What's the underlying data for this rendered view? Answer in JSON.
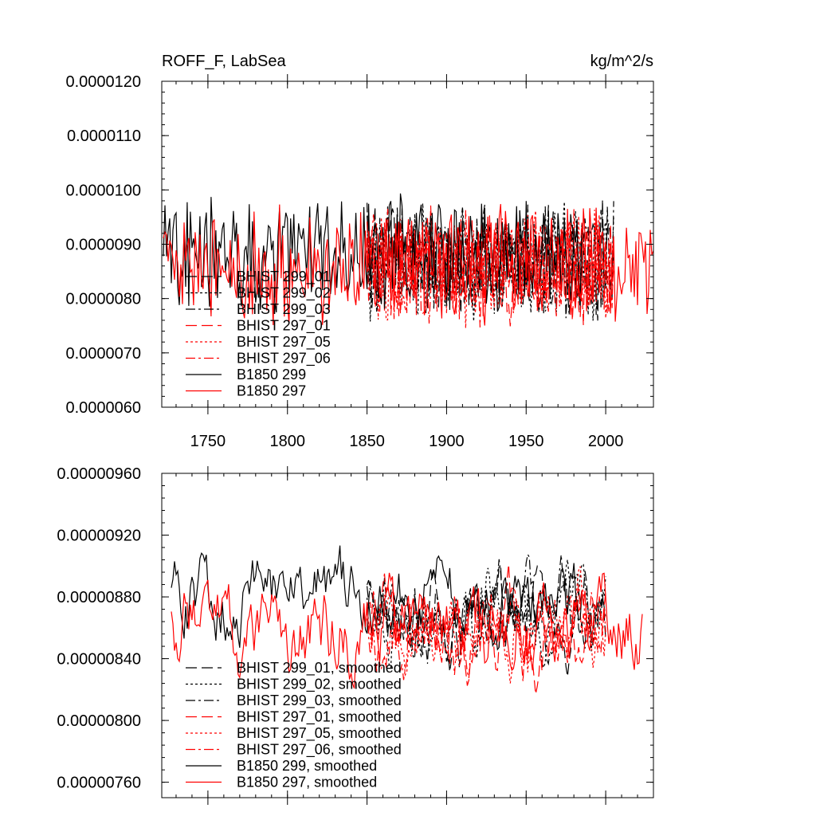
{
  "chart_data": [
    {
      "type": "line",
      "title": "ROFF_F, LabSea",
      "units": "kg/m^2/s",
      "xlim": [
        1721,
        2030
      ],
      "ylim": [
        6e-06,
        1.2e-05
      ],
      "xticks": [
        1750,
        1800,
        1850,
        1900,
        1950,
        2000
      ],
      "yticks": [
        6e-06,
        7e-06,
        8e-06,
        9e-06,
        1e-05,
        1.1e-05,
        1.2e-05
      ],
      "xtick_labels": [
        "1750",
        "1800",
        "1850",
        "1900",
        "1950",
        "2000"
      ],
      "ytick_labels": [
        "0.0000060",
        "0.0000070",
        "0.0000080",
        "0.0000090",
        "0.0000100",
        "0.0000110",
        "0.0000120"
      ],
      "legend": [
        "BHIST 299_01",
        "BHIST 299_02",
        "BHIST 299_03",
        "BHIST 297_01",
        "BHIST 297_05",
        "BHIST 297_06",
        "B1850 299",
        "B1850 297"
      ],
      "series": [
        {
          "name": "BHIST 299_01",
          "color": "#000000",
          "style": "long-dash",
          "start": 1850,
          "end": 2005,
          "mean": 8.7e-06,
          "amp": 9e-07,
          "seed": 11
        },
        {
          "name": "BHIST 299_02",
          "color": "#000000",
          "style": "dot",
          "start": 1850,
          "end": 2005,
          "mean": 8.7e-06,
          "amp": 9e-07,
          "seed": 23
        },
        {
          "name": "BHIST 299_03",
          "color": "#000000",
          "style": "dash-dot",
          "start": 1850,
          "end": 2005,
          "mean": 8.7e-06,
          "amp": 9e-07,
          "seed": 37
        },
        {
          "name": "BHIST 297_01",
          "color": "#ff0000",
          "style": "long-dash",
          "start": 1850,
          "end": 2005,
          "mean": 8.6e-06,
          "amp": 9e-07,
          "seed": 41
        },
        {
          "name": "BHIST 297_05",
          "color": "#ff0000",
          "style": "dot",
          "start": 1850,
          "end": 2005,
          "mean": 8.6e-06,
          "amp": 9e-07,
          "seed": 53
        },
        {
          "name": "BHIST 297_06",
          "color": "#ff0000",
          "style": "dash-dot",
          "start": 1850,
          "end": 2005,
          "mean": 8.6e-06,
          "amp": 9e-07,
          "seed": 67
        },
        {
          "name": "B1850 299",
          "color": "#000000",
          "style": "solid",
          "start": 1722,
          "end": 1985,
          "mean": 8.8e-06,
          "amp": 9e-07,
          "seed": 79
        },
        {
          "name": "B1850 297",
          "color": "#ff0000",
          "style": "solid",
          "start": 1722,
          "end": 2030,
          "mean": 8.6e-06,
          "amp": 9e-07,
          "seed": 97
        }
      ]
    },
    {
      "type": "line",
      "xlim": [
        1721,
        2030
      ],
      "ylim": [
        7.5e-06,
        9.6e-06
      ],
      "xticks": [
        1750,
        1800,
        1850,
        1900,
        1950,
        2000
      ],
      "yticks": [
        7.6e-06,
        8e-06,
        8.4e-06,
        8.8e-06,
        9.2e-06,
        9.6e-06
      ],
      "ytick_labels": [
        "0.00000760",
        "0.00000800",
        "0.00000840",
        "0.00000880",
        "0.00000920",
        "0.00000960"
      ],
      "legend": [
        "BHIST 299_01, smoothed",
        "BHIST 299_02, smoothed",
        "BHIST 299_03, smoothed",
        "BHIST 297_01, smoothed",
        "BHIST 297_05, smoothed",
        "BHIST 297_06, smoothed",
        "B1850 299, smoothed",
        "B1850 297, smoothed"
      ],
      "series": [
        {
          "name": "BHIST 299_01, smoothed",
          "color": "#000000",
          "style": "long-dash",
          "start": 1850,
          "end": 2000,
          "mean": 8.7e-06,
          "amp": 2.5e-07,
          "seed": 111
        },
        {
          "name": "BHIST 299_02, smoothed",
          "color": "#000000",
          "style": "dot",
          "start": 1850,
          "end": 2000,
          "mean": 8.7e-06,
          "amp": 2.5e-07,
          "seed": 123
        },
        {
          "name": "BHIST 299_03, smoothed",
          "color": "#000000",
          "style": "dash-dot",
          "start": 1850,
          "end": 2000,
          "mean": 8.7e-06,
          "amp": 2.5e-07,
          "seed": 137
        },
        {
          "name": "BHIST 297_01, smoothed",
          "color": "#ff0000",
          "style": "long-dash",
          "start": 1850,
          "end": 2000,
          "mean": 8.6e-06,
          "amp": 2.5e-07,
          "seed": 141
        },
        {
          "name": "BHIST 297_05, smoothed",
          "color": "#ff0000",
          "style": "dot",
          "start": 1850,
          "end": 2000,
          "mean": 8.6e-06,
          "amp": 2.5e-07,
          "seed": 153
        },
        {
          "name": "BHIST 297_06, smoothed",
          "color": "#ff0000",
          "style": "dash-dot",
          "start": 1850,
          "end": 2000,
          "mean": 8.6e-06,
          "amp": 2.5e-07,
          "seed": 167
        },
        {
          "name": "B1850 299, smoothed",
          "color": "#000000",
          "style": "solid",
          "start": 1727,
          "end": 1985,
          "mean": 8.8e-06,
          "amp": 2.2e-07,
          "seed": 179
        },
        {
          "name": "B1850 297, smoothed",
          "color": "#ff0000",
          "style": "solid",
          "start": 1727,
          "end": 2023,
          "mean": 8.6e-06,
          "amp": 2.5e-07,
          "seed": 197
        }
      ]
    }
  ]
}
